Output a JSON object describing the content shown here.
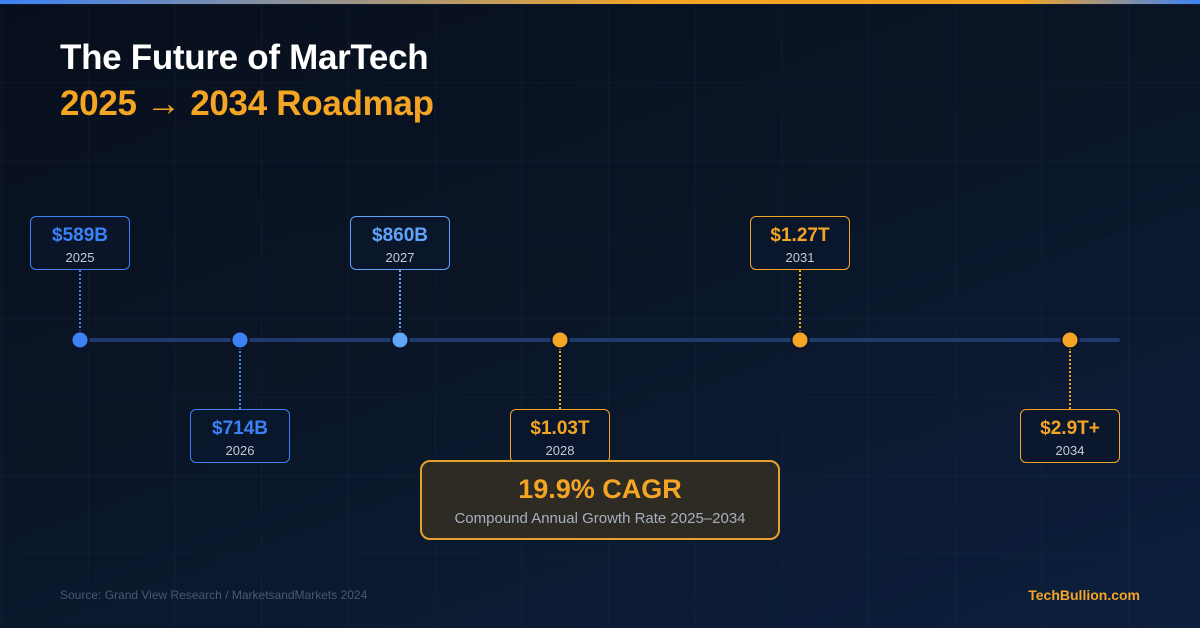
{
  "title": "The Future of MarTech",
  "subtitle": "2025 → 2034 Roadmap",
  "colors": {
    "blue": "#3b82f6",
    "light_blue": "#60a5fa",
    "orange": "#f5a524"
  },
  "milestones": [
    {
      "value": "$589B",
      "year": "2025",
      "color": "#3b82f6",
      "position": "above"
    },
    {
      "value": "$714B",
      "year": "2026",
      "color": "#3b82f6",
      "position": "below"
    },
    {
      "value": "$860B",
      "year": "2027",
      "color": "#60a5fa",
      "position": "above"
    },
    {
      "value": "$1.03T",
      "year": "2028",
      "color": "#f5a524",
      "position": "below"
    },
    {
      "value": "$1.27T",
      "year": "2031",
      "color": "#f5a524",
      "position": "above"
    },
    {
      "value": "$2.9T+",
      "year": "2034",
      "color": "#f5a524",
      "position": "below"
    }
  ],
  "cagr": {
    "headline": "19.9% CAGR",
    "description": "Compound Annual Growth Rate 2025–2034"
  },
  "source": "Source: Grand View Research / MarketsandMarkets 2024",
  "brand": "TechBullion.com"
}
